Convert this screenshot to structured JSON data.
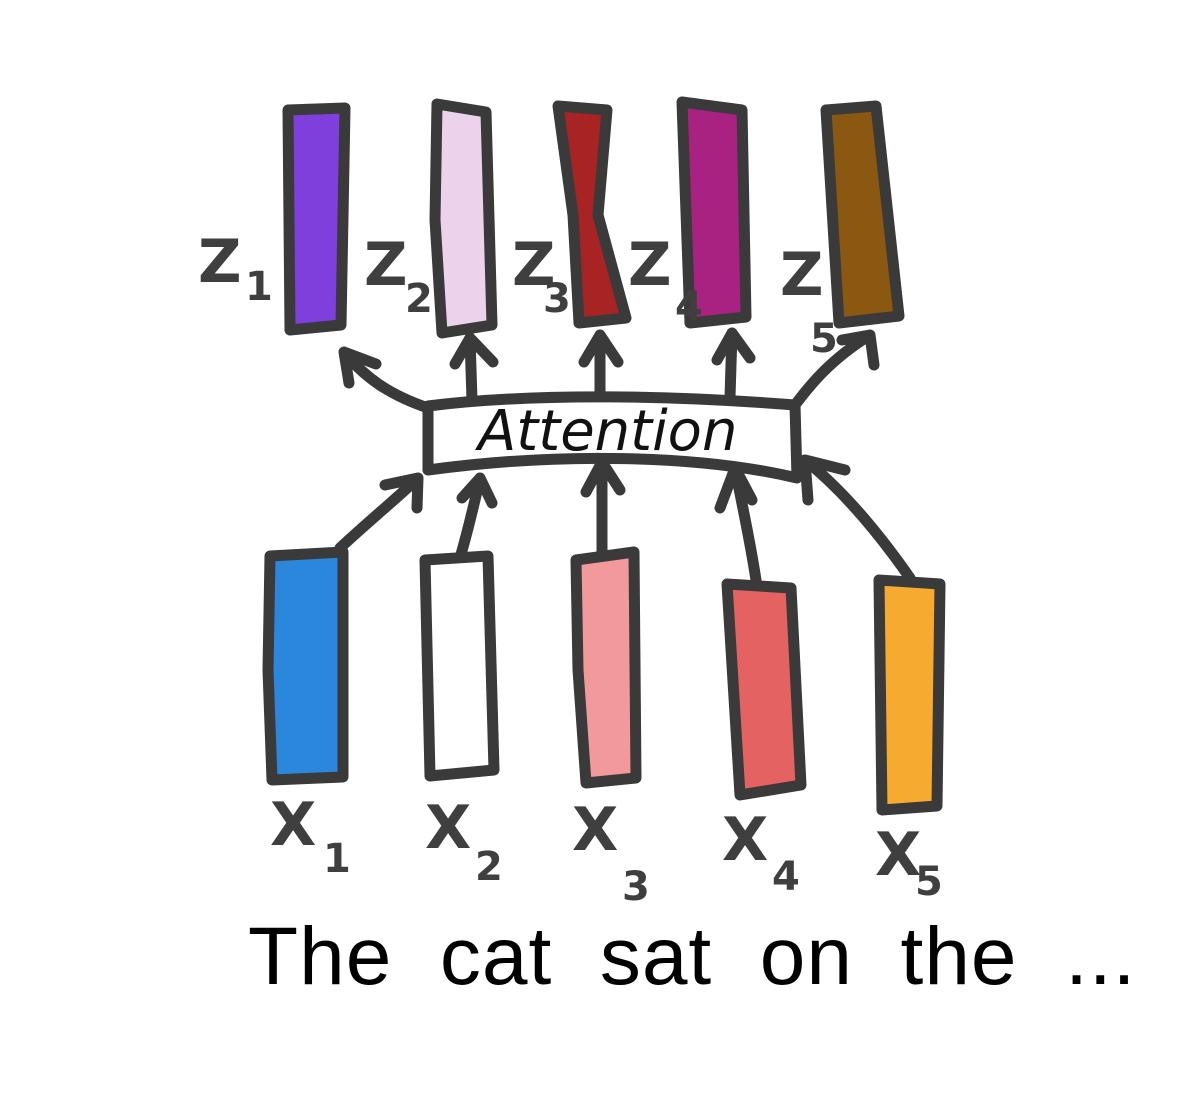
{
  "attention_label": "Attention",
  "sentence": "The  cat  sat  on  the  ...",
  "outputs": [
    {
      "label": "Z",
      "sub": "1",
      "color": "#7f3fdc"
    },
    {
      "label": "Z",
      "sub": "2",
      "color": "#ecd2ea"
    },
    {
      "label": "Z",
      "sub": "3",
      "color": "#a82324"
    },
    {
      "label": "Z",
      "sub": "4",
      "color": "#a92282"
    },
    {
      "label": "Z",
      "sub": "5",
      "color": "#8a5810"
    }
  ],
  "inputs": [
    {
      "label": "X",
      "sub": "1",
      "color": "#2b87dc"
    },
    {
      "label": "X",
      "sub": "2",
      "color": "#ffffff"
    },
    {
      "label": "X",
      "sub": "3",
      "color": "#f29a9b"
    },
    {
      "label": "X",
      "sub": "4",
      "color": "#e46262"
    },
    {
      "label": "X",
      "sub": "5",
      "color": "#f7aa30"
    }
  ]
}
